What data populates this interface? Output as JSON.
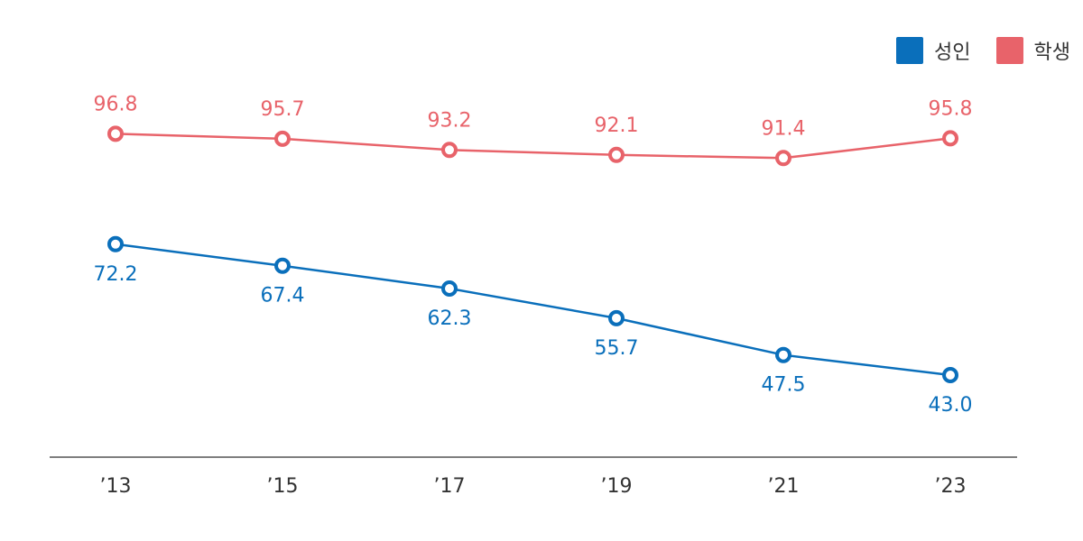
{
  "chart_data": {
    "type": "line",
    "categories": [
      "’13",
      "’15",
      "’17",
      "’19",
      "’21",
      "’23"
    ],
    "series": [
      {
        "name": "성인",
        "color": "#0a6fbb",
        "values": [
          72.2,
          67.4,
          62.3,
          55.7,
          47.5,
          43.0
        ],
        "labels": [
          "72.2",
          "67.4",
          "62.3",
          "55.7",
          "47.5",
          "43.0"
        ]
      },
      {
        "name": "학생",
        "color": "#e8636a",
        "values": [
          96.8,
          95.7,
          93.2,
          92.1,
          91.4,
          95.8
        ],
        "labels": [
          "96.8",
          "95.7",
          "93.2",
          "92.1",
          "91.4",
          "95.8"
        ]
      }
    ],
    "legend_position": "top-right",
    "grid": false
  }
}
